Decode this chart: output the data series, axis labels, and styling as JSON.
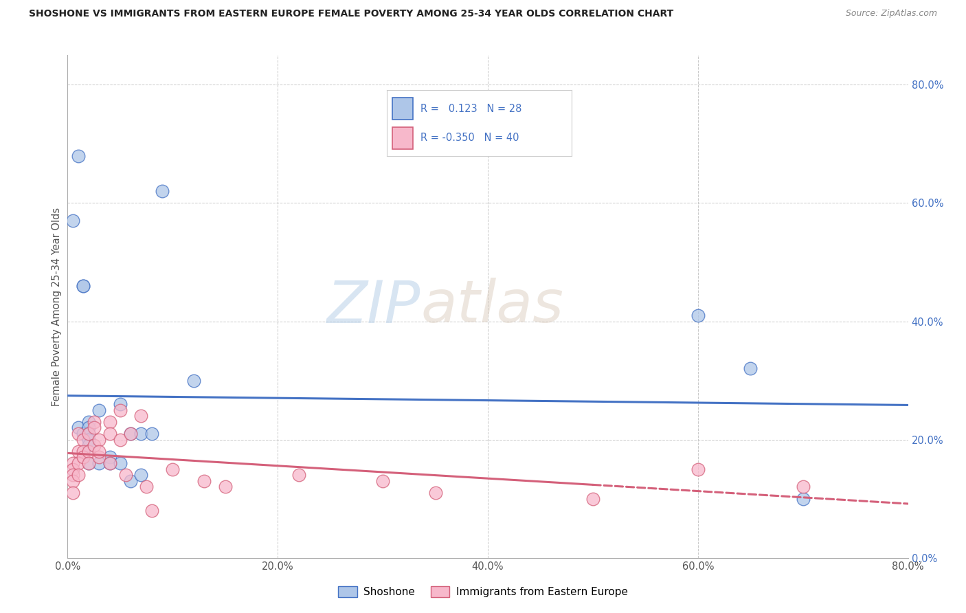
{
  "title": "SHOSHONE VS IMMIGRANTS FROM EASTERN EUROPE FEMALE POVERTY AMONG 25-34 YEAR OLDS CORRELATION CHART",
  "source": "Source: ZipAtlas.com",
  "ylabel": "Female Poverty Among 25-34 Year Olds",
  "shoshone_R": "0.123",
  "shoshone_N": "28",
  "eastern_R": "-0.350",
  "eastern_N": "40",
  "shoshone_color": "#aec6e8",
  "shoshone_line_color": "#4472c4",
  "eastern_color": "#f7b8cb",
  "eastern_line_color": "#d4607a",
  "background_color": "#ffffff",
  "grid_color": "#c8c8c8",
  "watermark_zip": "ZIP",
  "watermark_atlas": "atlas",
  "shoshone_x": [
    0.005,
    0.01,
    0.01,
    0.015,
    0.015,
    0.015,
    0.02,
    0.02,
    0.02,
    0.02,
    0.02,
    0.02,
    0.03,
    0.03,
    0.04,
    0.04,
    0.05,
    0.05,
    0.06,
    0.06,
    0.07,
    0.07,
    0.08,
    0.09,
    0.12,
    0.6,
    0.65,
    0.7
  ],
  "shoshone_y": [
    0.57,
    0.68,
    0.22,
    0.46,
    0.46,
    0.21,
    0.23,
    0.22,
    0.21,
    0.2,
    0.19,
    0.16,
    0.25,
    0.16,
    0.17,
    0.16,
    0.26,
    0.16,
    0.21,
    0.13,
    0.21,
    0.14,
    0.21,
    0.62,
    0.3,
    0.41,
    0.32,
    0.1
  ],
  "eastern_x": [
    0.005,
    0.005,
    0.005,
    0.005,
    0.005,
    0.01,
    0.01,
    0.01,
    0.01,
    0.015,
    0.015,
    0.015,
    0.02,
    0.02,
    0.02,
    0.025,
    0.025,
    0.025,
    0.03,
    0.03,
    0.03,
    0.04,
    0.04,
    0.04,
    0.05,
    0.05,
    0.055,
    0.06,
    0.07,
    0.075,
    0.08,
    0.1,
    0.13,
    0.15,
    0.22,
    0.3,
    0.35,
    0.5,
    0.6,
    0.7
  ],
  "eastern_y": [
    0.16,
    0.15,
    0.14,
    0.13,
    0.11,
    0.21,
    0.18,
    0.16,
    0.14,
    0.2,
    0.18,
    0.17,
    0.21,
    0.18,
    0.16,
    0.23,
    0.22,
    0.19,
    0.17,
    0.2,
    0.18,
    0.23,
    0.21,
    0.16,
    0.25,
    0.2,
    0.14,
    0.21,
    0.24,
    0.12,
    0.08,
    0.15,
    0.13,
    0.12,
    0.14,
    0.13,
    0.11,
    0.1,
    0.15,
    0.12
  ],
  "xlim": [
    0.0,
    0.8
  ],
  "ylim": [
    0.0,
    0.85
  ],
  "xtick_vals": [
    0.0,
    0.2,
    0.4,
    0.6,
    0.8
  ],
  "ytick_vals": [
    0.0,
    0.2,
    0.4,
    0.6,
    0.8
  ]
}
